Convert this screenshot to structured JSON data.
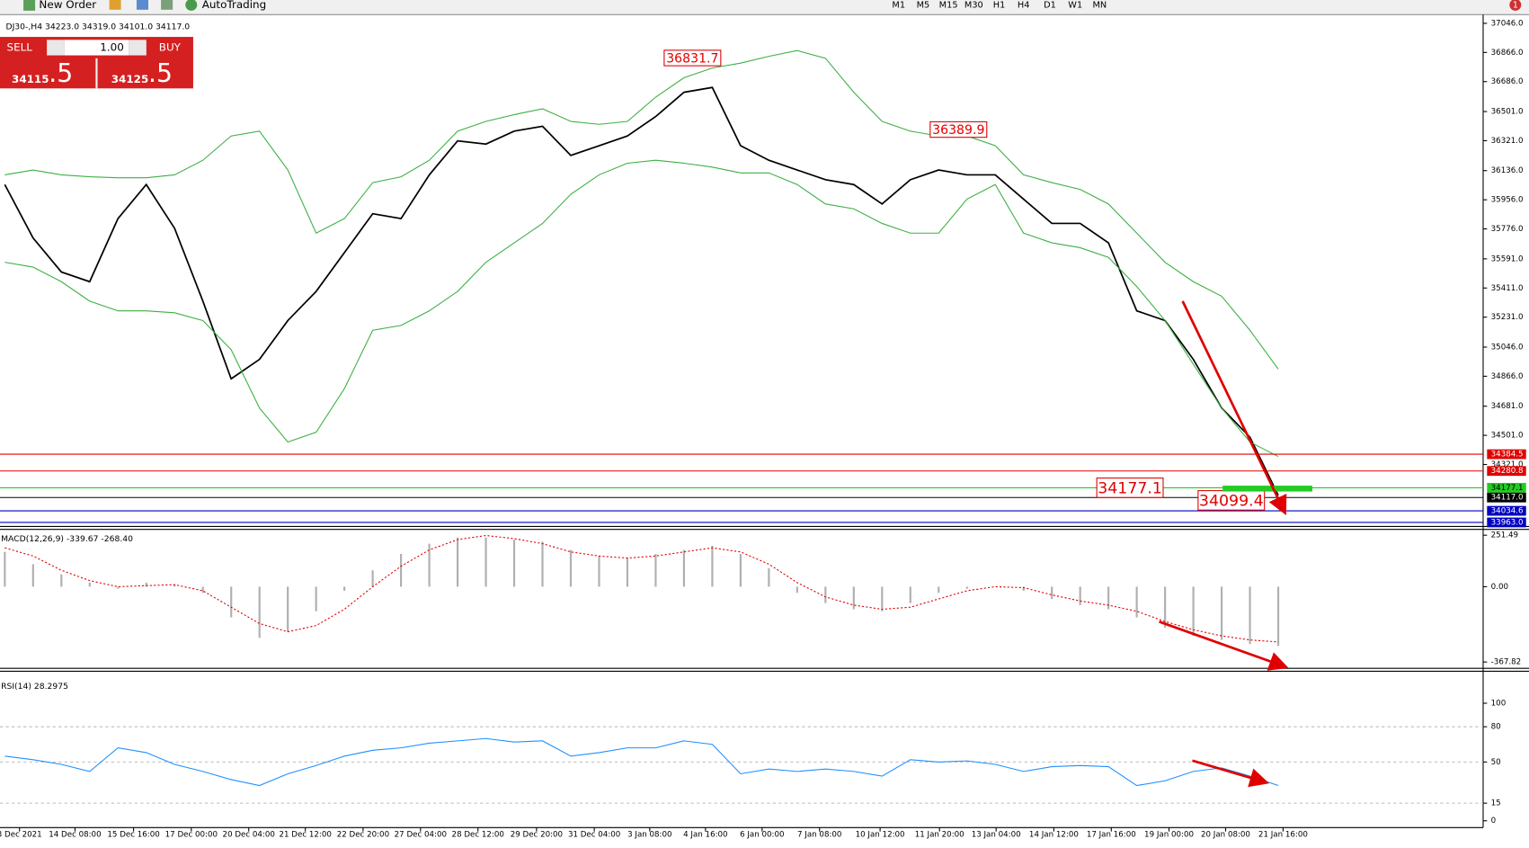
{
  "toolbar": {
    "new_order": "New Order",
    "auto_trading": "AutoTrading",
    "timeframes": [
      "M1",
      "M5",
      "M15",
      "M30",
      "H1",
      "H4",
      "D1",
      "W1",
      "MN"
    ],
    "notification_count": "1"
  },
  "trade_panel": {
    "sell": "SELL",
    "lot": "1.00",
    "buy": "BUY",
    "sell_price_main": "34115",
    "sell_price_pip": ".5",
    "buy_price_main": "34125",
    "buy_price_pip": ".5"
  },
  "chart_data": [
    {
      "type": "line",
      "title": "DJ30-,H4 34223.0 34319.0 34101.0 34117.0",
      "x": [
        0,
        1,
        2,
        3,
        4,
        5,
        6,
        7,
        8,
        9,
        10,
        11,
        12,
        13,
        14,
        15,
        16,
        17,
        18,
        19,
        20,
        21,
        22,
        23,
        24,
        25,
        26,
        27,
        28,
        29,
        30,
        31,
        32,
        33,
        34,
        35,
        36,
        37,
        38,
        39,
        40,
        41,
        42,
        43,
        44,
        45
      ],
      "xlim": [
        -0.17,
        52.24
      ],
      "ylim": [
        33944,
        37082
      ],
      "yticks": [
        {
          "value": 37046,
          "label": "37046.0"
        },
        {
          "value": 36866,
          "label": "36866.0"
        },
        {
          "value": 36686,
          "label": "36686.0"
        },
        {
          "value": 36501,
          "label": "36501.0"
        },
        {
          "value": 36321,
          "label": "36321.0"
        },
        {
          "value": 36136,
          "label": "36136.0"
        },
        {
          "value": 35956,
          "label": "35956.0"
        },
        {
          "value": 35776,
          "label": "35776.0"
        },
        {
          "value": 35591,
          "label": "35591.0"
        },
        {
          "value": 35411,
          "label": "35411.0"
        },
        {
          "value": 35231,
          "label": "35231.0"
        },
        {
          "value": 35046,
          "label": "35046.0"
        },
        {
          "value": 34866,
          "label": "34866.0"
        },
        {
          "value": 34681,
          "label": "34681.0"
        },
        {
          "value": 34501,
          "label": "34501.0"
        },
        {
          "value": 34321,
          "label": "34321.0"
        }
      ],
      "series": [
        {
          "color": "#000000",
          "style": "line",
          "values": [
            36050,
            35720,
            35510,
            35450,
            35840,
            36050,
            35780,
            35330,
            34850,
            34970,
            35210,
            35390,
            35630,
            35870,
            35840,
            36110,
            36320,
            36300,
            36380,
            36410,
            36230,
            36290,
            36350,
            36470,
            36620,
            36650,
            36290,
            36200,
            36140,
            36080,
            36050,
            35930,
            36080,
            36140,
            36110,
            36110,
            35960,
            35810,
            35810,
            35690,
            35270,
            35210,
            34970,
            34670,
            34490,
            34130
          ]
        },
        {
          "color": "#3cb043",
          "style": "line",
          "values": [
            36110,
            36140,
            36110,
            36098,
            36092,
            36092,
            36110,
            36200,
            36350,
            36380,
            36140,
            35750,
            35840,
            36062,
            36098,
            36200,
            36380,
            36440,
            36482,
            36518,
            36440,
            36422,
            36440,
            36590,
            36710,
            36770,
            36800,
            36842,
            36878,
            36830,
            36620,
            36440,
            36380,
            36350,
            36350,
            36290,
            36110,
            36062,
            36020,
            35930,
            35750,
            35570,
            35450,
            35360,
            35150,
            34910
          ]
        },
        {
          "color": "#3cb043",
          "style": "line",
          "values": [
            35570,
            35540,
            35450,
            35330,
            35270,
            35270,
            35258,
            35210,
            35030,
            34670,
            34460,
            34520,
            34790,
            35150,
            35180,
            35270,
            35390,
            35570,
            35690,
            35810,
            35990,
            36110,
            36182,
            36200,
            36182,
            36158,
            36122,
            36122,
            36050,
            35930,
            35900,
            35810,
            35750,
            35750,
            35960,
            36050,
            35750,
            35690,
            35660,
            35600,
            35420,
            35210,
            34940,
            34670,
            34460,
            34370
          ]
        }
      ],
      "levels": [
        {
          "value": 34384.5,
          "color": "#e00000"
        },
        {
          "value": 34280.8,
          "color": "#e00000"
        },
        {
          "value": 34177.1,
          "color": "#22cc22"
        },
        {
          "value": 34117,
          "label": "34117.0",
          "color": "#000000"
        },
        {
          "value": 34034.6,
          "color": "#0000c0"
        },
        {
          "value": 33963,
          "label": "33963.0",
          "color": "#0000c0"
        }
      ],
      "annotations": [
        {
          "label": "36831.7",
          "x": 24.3,
          "value": 36831.7
        },
        {
          "label": "36389.9",
          "x": 33.7,
          "value": 36389.9
        },
        {
          "label": "34177.1",
          "x": 39.76,
          "value": 34177.1
        },
        {
          "label": "34099.4",
          "x": 43.34,
          "value": 34099.4
        }
      ]
    },
    {
      "type": "histogram",
      "title": "MACD(12,26,9) -339.67 -268.40",
      "x": [
        0,
        1,
        2,
        3,
        4,
        5,
        6,
        7,
        8,
        9,
        10,
        11,
        12,
        13,
        14,
        15,
        16,
        17,
        18,
        19,
        20,
        21,
        22,
        23,
        24,
        25,
        26,
        27,
        28,
        29,
        30,
        31,
        32,
        33,
        34,
        35,
        36,
        37,
        38,
        39,
        40,
        41,
        42,
        43,
        44,
        45
      ],
      "xlim": [
        -0.17,
        52.24
      ],
      "ylim": [
        -398.6,
        265.7
      ],
      "yticks": [
        251.49,
        {
          "value": 0,
          "label": "0.00"
        },
        -367.82
      ],
      "series": [
        {
          "color": "#b0b0b0",
          "style": "histogram",
          "values": [
            170,
            110,
            60,
            20,
            -10,
            20,
            10,
            -30,
            -150,
            -250,
            -220,
            -120,
            -20,
            80,
            160,
            210,
            240,
            240,
            230,
            220,
            180,
            150,
            140,
            160,
            180,
            200,
            160,
            90,
            -30,
            -80,
            -110,
            -120,
            -80,
            -30,
            -10,
            0,
            -20,
            -60,
            -90,
            -110,
            -150,
            -200,
            -240,
            -260,
            -280,
            -290
          ]
        },
        {
          "color": "#e00000",
          "style": "dashed",
          "values": [
            190,
            150,
            80,
            30,
            0,
            5,
            10,
            -20,
            -100,
            -180,
            -220,
            -190,
            -110,
            0,
            100,
            180,
            230,
            250,
            235,
            210,
            170,
            150,
            140,
            150,
            170,
            190,
            170,
            110,
            20,
            -50,
            -90,
            -110,
            -100,
            -60,
            -20,
            0,
            -5,
            -40,
            -70,
            -90,
            -120,
            -170,
            -210,
            -240,
            -260,
            -270
          ]
        }
      ]
    },
    {
      "type": "line",
      "title": "RSI(14) 28.2975",
      "x": [
        0,
        1,
        2,
        3,
        4,
        5,
        6,
        7,
        8,
        9,
        10,
        11,
        12,
        13,
        14,
        15,
        16,
        17,
        18,
        19,
        20,
        21,
        22,
        23,
        24,
        25,
        26,
        27,
        28,
        29,
        30,
        31,
        32,
        33,
        34,
        35,
        36,
        37,
        38,
        39,
        40,
        41,
        42,
        43,
        44,
        45
      ],
      "xlim": [
        -0.17,
        52.24
      ],
      "ylim": [
        -5.8,
        119.8
      ],
      "yticks": [
        100,
        80,
        50,
        15,
        0
      ],
      "levels": [
        80,
        50,
        15
      ],
      "xticks": [
        {
          "value": 0.52,
          "label": "3 Dec 2021"
        },
        {
          "value": 2.48,
          "label": "14 Dec 08:00"
        },
        {
          "value": 4.55,
          "label": "15 Dec 16:00"
        },
        {
          "value": 6.59,
          "label": "17 Dec 00:00"
        },
        {
          "value": 8.62,
          "label": "20 Dec 04:00"
        },
        {
          "value": 10.62,
          "label": "21 Dec 12:00"
        },
        {
          "value": 12.66,
          "label": "22 Dec 20:00"
        },
        {
          "value": 14.69,
          "label": "27 Dec 04:00"
        },
        {
          "value": 16.72,
          "label": "28 Dec 12:00"
        },
        {
          "value": 18.79,
          "label": "29 Dec 20:00"
        },
        {
          "value": 20.83,
          "label": "31 Dec 04:00"
        },
        {
          "value": 22.79,
          "label": "3 Jan 08:00"
        },
        {
          "value": 24.76,
          "label": "4 Jan 16:00"
        },
        {
          "value": 26.76,
          "label": "6 Jan 00:00"
        },
        {
          "value": 28.79,
          "label": "7 Jan 08:00"
        },
        {
          "value": 30.93,
          "label": "10 Jan 12:00"
        },
        {
          "value": 33.03,
          "label": "11 Jan 20:00"
        },
        {
          "value": 35.03,
          "label": "13 Jan 04:00"
        },
        {
          "value": 37.07,
          "label": "14 Jan 12:00"
        },
        {
          "value": 39.1,
          "label": "17 Jan 16:00"
        },
        {
          "value": 41.14,
          "label": "19 Jan 00:00"
        },
        {
          "value": 43.14,
          "label": "20 Jan 08:00"
        },
        {
          "value": 45.17,
          "label": "21 Jan 16:00"
        }
      ],
      "series": [
        {
          "color": "#1e90ff",
          "style": "line",
          "values": [
            55,
            52,
            48,
            42,
            62,
            58,
            48,
            42,
            35,
            30,
            40,
            47,
            55,
            60,
            62,
            66,
            68,
            70,
            67,
            68,
            55,
            58,
            62,
            62,
            68,
            65,
            40,
            44,
            42,
            44,
            42,
            38,
            52,
            50,
            51,
            48,
            42,
            46,
            47,
            46,
            30,
            34,
            42,
            45,
            38,
            30
          ]
        }
      ]
    }
  ]
}
